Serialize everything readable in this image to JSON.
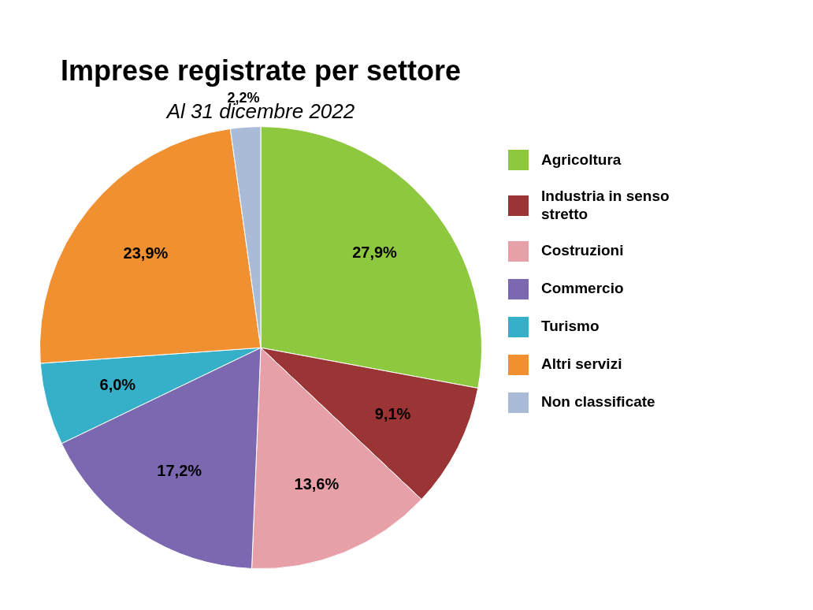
{
  "chart_data": {
    "type": "pie",
    "title": "Imprese registrate per settore",
    "subtitle": "Al 31 dicembre 2022",
    "categories": [
      "Agricoltura",
      "Industria in senso\nstretto",
      "Costruzioni",
      "Commercio",
      "Turismo",
      "Altri servizi",
      "Non classificate"
    ],
    "values": [
      27.9,
      9.1,
      13.6,
      17.2,
      6.0,
      23.9,
      2.2
    ],
    "value_labels": [
      "27,9%",
      "9,1%",
      "13,6%",
      "17,2%",
      "6,0%",
      "23,9%",
      "2,2%"
    ],
    "colors": [
      "#8dc83f",
      "#9b3535",
      "#e8a0a8",
      "#7b68b0",
      "#35b0c8",
      "#f09030",
      "#aabbd8"
    ],
    "data_labels": true,
    "legend": "right"
  }
}
